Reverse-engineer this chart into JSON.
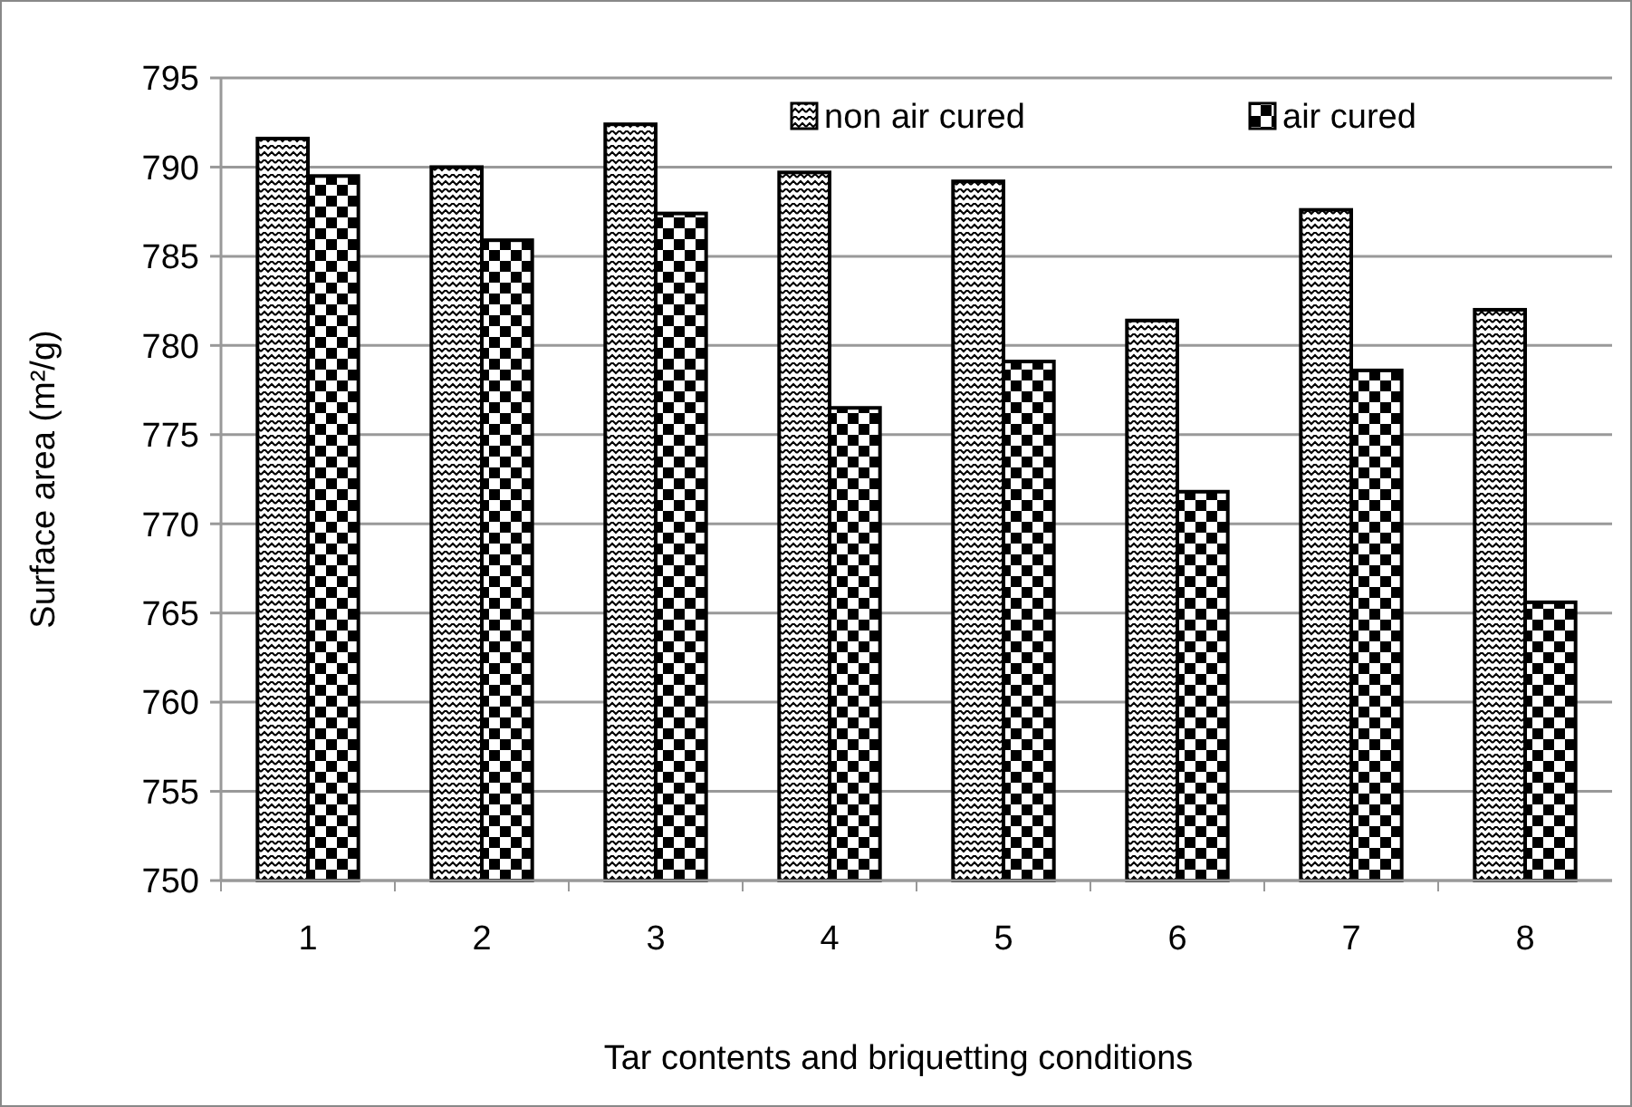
{
  "chart_data": {
    "type": "bar",
    "xlabel": "Tar contents and briquetting conditions",
    "ylabel": "Surface area (m²/g)",
    "categories": [
      "1",
      "2",
      "3",
      "4",
      "5",
      "6",
      "7",
      "8"
    ],
    "series": [
      {
        "name": "non air cured",
        "color": "#000000",
        "values": [
          791.6,
          790.0,
          792.4,
          789.7,
          789.2,
          781.4,
          787.6,
          782.0
        ]
      },
      {
        "name": "air cured",
        "color": "#000000",
        "values": [
          789.5,
          785.9,
          787.4,
          776.5,
          779.1,
          771.8,
          778.6,
          765.6
        ]
      }
    ],
    "ylim": [
      750,
      795
    ],
    "yticks": [
      750,
      755,
      760,
      765,
      770,
      775,
      780,
      785,
      790,
      795
    ],
    "grid": "y",
    "legend": "top"
  }
}
